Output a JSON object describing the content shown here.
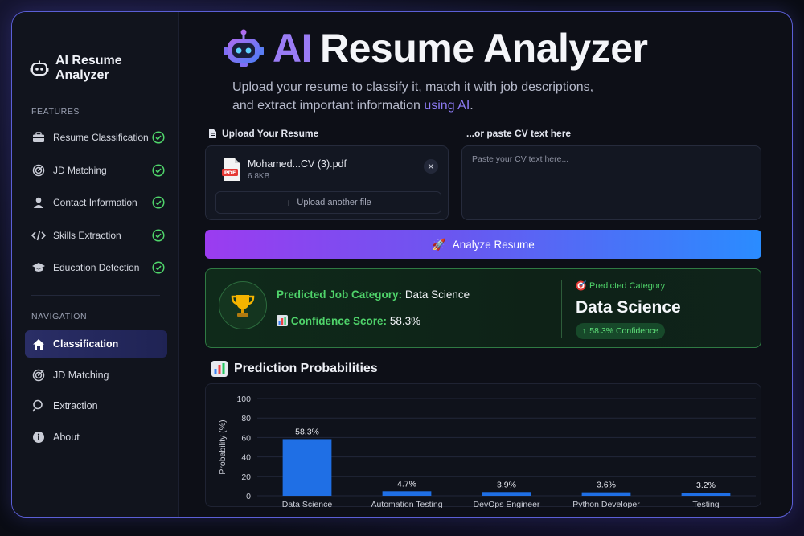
{
  "sidebar": {
    "brand": "AI Resume Analyzer",
    "features_label": "FEATURES",
    "features": [
      {
        "label": "Resume Classification",
        "icon": "briefcase-icon",
        "done": true
      },
      {
        "label": "JD Matching",
        "icon": "target-icon",
        "done": true
      },
      {
        "label": "Contact Information",
        "icon": "user-icon",
        "done": true
      },
      {
        "label": "Skills Extraction",
        "icon": "code-icon",
        "done": true
      },
      {
        "label": "Education Detection",
        "icon": "graduation-cap-icon",
        "done": true
      }
    ],
    "navigation_label": "NAVIGATION",
    "nav": [
      {
        "label": "Classification",
        "icon": "home-icon",
        "active": true
      },
      {
        "label": "JD Matching",
        "icon": "target-icon",
        "active": false
      },
      {
        "label": "Extraction",
        "icon": "search-icon",
        "active": false
      },
      {
        "label": "About",
        "icon": "info-icon",
        "active": false
      }
    ]
  },
  "hero": {
    "title_ai": "AI",
    "title_rest": "Resume Analyzer",
    "subtitle_line1": "Upload your resume to classify it, match it with job descriptions,",
    "subtitle_line2": "and extract important information ",
    "subtitle_highlight": "using AI",
    "subtitle_end": "."
  },
  "upload": {
    "label": "Upload Your Resume",
    "file_name": "Mohamed...CV (3).pdf",
    "file_size": "6.8KB",
    "another_label": "Upload another file"
  },
  "paste": {
    "label": "...or paste CV text here",
    "placeholder": "Paste your CV text here..."
  },
  "analyze_button": "Analyze Resume",
  "result": {
    "category_key": "Predicted Job Category:",
    "category_value": "Data Science",
    "confidence_key": "Confidence Score:",
    "confidence_value": "58.3%",
    "side_label": "Predicted Category",
    "side_value": "Data Science",
    "badge": "58.3% Confidence"
  },
  "probabilities_title": "Prediction Probabilities",
  "colors": {
    "accent_green": "#4fd36a",
    "bar_blue": "#1f6fe5",
    "brand_purple": "#9a7cf5"
  },
  "chart_data": {
    "type": "bar",
    "ylabel": "Probability (%)",
    "ylim": [
      0,
      100
    ],
    "yticks": [
      0,
      20,
      40,
      60,
      80,
      100
    ],
    "categories": [
      "Data Science",
      "Automation Testing",
      "DevOps Engineer",
      "Python Developer",
      "Testing"
    ],
    "values": [
      58.3,
      4.7,
      3.9,
      3.6,
      3.2
    ],
    "labels": [
      "58.3%",
      "4.7%",
      "3.9%",
      "3.6%",
      "3.2%"
    ],
    "grid": true
  }
}
